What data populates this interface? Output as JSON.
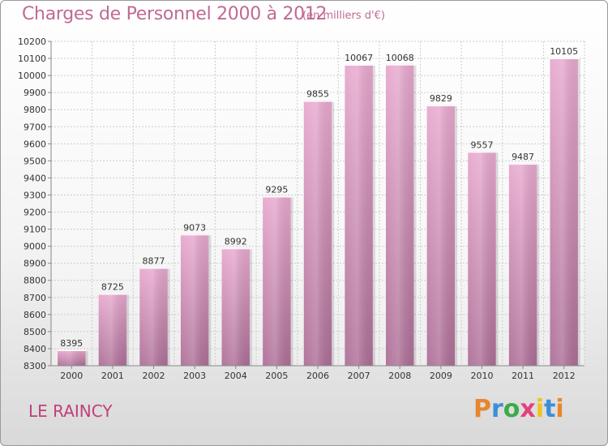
{
  "header": {
    "title": "Charges de Personnel 2000 à 2012",
    "subtitle": "(en milliers d'€)"
  },
  "footer": {
    "city": "LE RAINCY",
    "brand": {
      "text": "Proxiti",
      "letters": [
        "P",
        "r",
        "o",
        "x",
        "i",
        "t",
        "i"
      ],
      "colors": [
        "#e8862c",
        "#3b8ed8",
        "#3bab4a",
        "#e43f7c",
        "#f0c419",
        "#3b8ed8",
        "#e8862c"
      ]
    }
  },
  "chart_data": {
    "type": "bar",
    "title": "Charges de Personnel 2000 à 2012",
    "subtitle": "(en milliers d'€)",
    "categories": [
      "2000",
      "2001",
      "2002",
      "2003",
      "2004",
      "2005",
      "2006",
      "2007",
      "2008",
      "2009",
      "2010",
      "2011",
      "2012"
    ],
    "values": [
      8395,
      8725,
      8877,
      9073,
      8992,
      9295,
      9855,
      10067,
      10068,
      9829,
      9557,
      9487,
      10105
    ],
    "ylim": [
      8300,
      10200
    ],
    "yticks": [
      8300,
      8400,
      8500,
      8600,
      8700,
      8800,
      8900,
      9000,
      9100,
      9200,
      9300,
      9400,
      9500,
      9600,
      9700,
      9800,
      9900,
      10000,
      10100,
      10200
    ],
    "grid": true,
    "legend": "none",
    "colors": {
      "bar_light": "#e8a7cd",
      "bar_dark": "#b06e98",
      "grid": "#cccccc",
      "axis": "#888888"
    }
  }
}
